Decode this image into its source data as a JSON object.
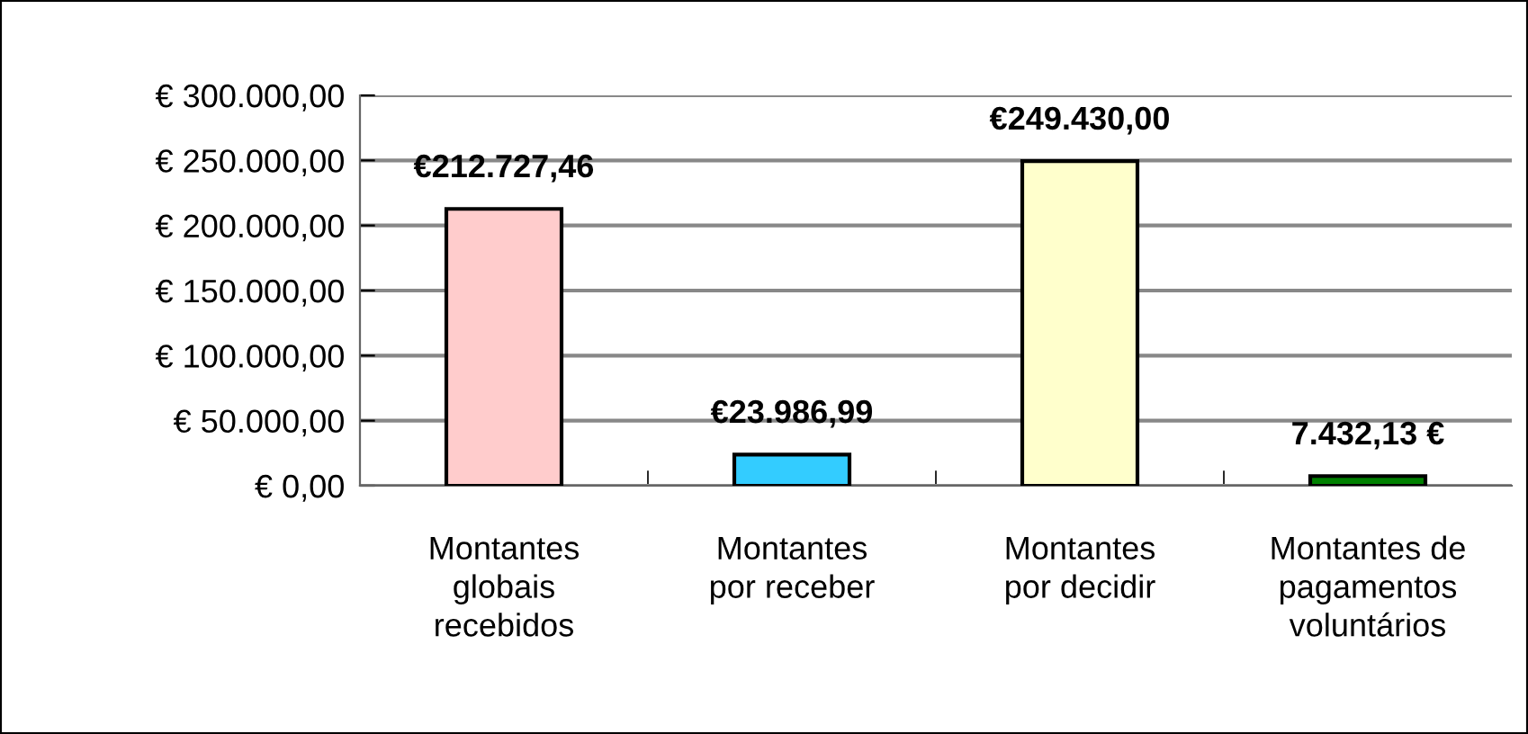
{
  "chart_data": {
    "type": "bar",
    "categories": [
      "Montantes\nglobais\nrecebidos",
      "Montantes\npor receber",
      "Montantes\npor decidir",
      "Montantes de\npagamentos\nvoluntários"
    ],
    "values": [
      212727.46,
      23986.99,
      249430.0,
      7432.13
    ],
    "colors": [
      "#ffcccc",
      "#33ccff",
      "#ffffcc",
      "#008000"
    ],
    "value_labels": [
      "€212.727,46",
      "€23.986,99",
      "€249.430,00",
      "7.432,13 €"
    ],
    "ylim": [
      0,
      300000
    ],
    "yticks": [
      {
        "value": 0,
        "label": "€ 0,00"
      },
      {
        "value": 50000,
        "label": "€ 50.000,00"
      },
      {
        "value": 100000,
        "label": "€ 100.000,00"
      },
      {
        "value": 150000,
        "label": "€ 150.000,00"
      },
      {
        "value": 200000,
        "label": "€ 200.000,00"
      },
      {
        "value": 250000,
        "label": "€ 250.000,00"
      },
      {
        "value": 300000,
        "label": "€ 300.000,00"
      }
    ],
    "grid": "y",
    "legend": false
  }
}
